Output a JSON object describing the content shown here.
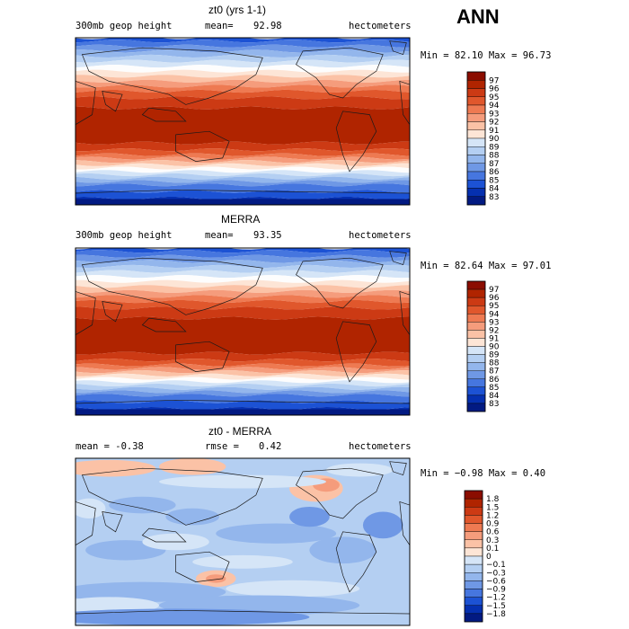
{
  "season": "ANN",
  "colors": {
    "warm": [
      "#8b0d00",
      "#b02400",
      "#cc3a14",
      "#e0572c",
      "#ee7a52",
      "#f59c7c",
      "#fbc2a6",
      "#fde5d6"
    ],
    "white": "#fdfdfd",
    "cool": [
      "#d5e5f7",
      "#b4cff2",
      "#93b6ec",
      "#6f98e5",
      "#4676df",
      "#1c52d4",
      "#0530b0",
      "#021a82"
    ]
  },
  "chart_data": [
    {
      "type": "heatmap",
      "title": "zt0 (yrs 1-1)",
      "variable": "300mb geop height",
      "stat_label": "mean=",
      "stat_value": "92.98",
      "units": "hectometers",
      "min_text": "Min =  82.10 Max =  96.73",
      "colorbar_levels": [
        "97",
        "96",
        "95",
        "94",
        "93",
        "92",
        "91",
        "90",
        "89",
        "88",
        "87",
        "86",
        "85",
        "84",
        "83"
      ]
    },
    {
      "type": "heatmap",
      "title": "MERRA",
      "variable": "300mb geop height",
      "stat_label": "mean=",
      "stat_value": "93.35",
      "units": "hectometers",
      "min_text": "Min =  82.64 Max =  97.01",
      "colorbar_levels": [
        "97",
        "96",
        "95",
        "94",
        "93",
        "92",
        "91",
        "90",
        "89",
        "88",
        "87",
        "86",
        "85",
        "84",
        "83"
      ]
    },
    {
      "type": "heatmap",
      "title": "zt0 - MERRA",
      "variable": "mean =  -0.38",
      "stat_label": "rmse =",
      "stat_value": "0.42",
      "units": "hectometers",
      "min_text": "Min =  −0.98 Max =   0.40",
      "colorbar_levels": [
        "1.8",
        "1.5",
        "1.2",
        "0.9",
        "0.6",
        "0.3",
        "0.1",
        "0",
        "−0.1",
        "−0.3",
        "−0.6",
        "−0.9",
        "−1.2",
        "−1.5",
        "−1.8"
      ]
    }
  ]
}
